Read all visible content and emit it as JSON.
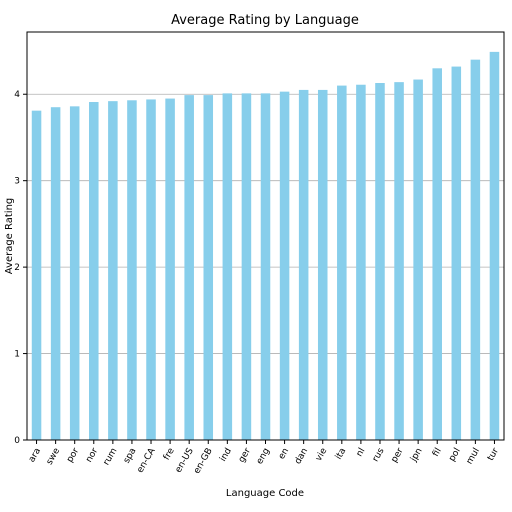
{
  "chart_data": {
    "type": "bar",
    "title": "Average Rating by Language",
    "xlabel": "Language Code",
    "ylabel": "Average Rating",
    "categories": [
      "ara",
      "swe",
      "por",
      "nor",
      "rum",
      "spa",
      "en-CA",
      "fre",
      "en-US",
      "en-GB",
      "ind",
      "ger",
      "eng",
      "en",
      "dan",
      "vie",
      "ita",
      "nl",
      "rus",
      "per",
      "jpn",
      "fil",
      "pol",
      "mul",
      "tur"
    ],
    "values": [
      3.81,
      3.85,
      3.86,
      3.91,
      3.92,
      3.93,
      3.94,
      3.95,
      3.99,
      3.99,
      4.01,
      4.01,
      4.01,
      4.03,
      4.05,
      4.05,
      4.1,
      4.11,
      4.13,
      4.14,
      4.17,
      4.3,
      4.32,
      4.4,
      4.49
    ],
    "ylim": [
      0,
      4.72
    ],
    "yticks": [
      0,
      1,
      2,
      3,
      4
    ],
    "grid": "y",
    "bar_color": "#87ceeb"
  }
}
